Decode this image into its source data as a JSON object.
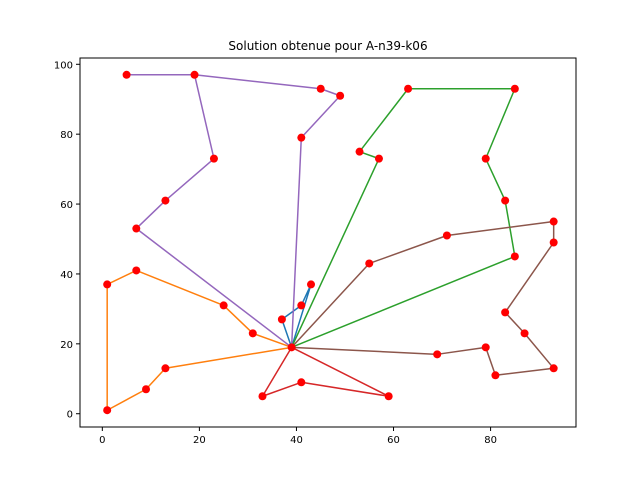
{
  "chart_data": {
    "type": "line",
    "title": "Solution obtenue pour A-n39-k06",
    "xlabel": "",
    "ylabel": "",
    "xlim": [
      -4.6,
      97.6
    ],
    "ylim": [
      -3.8,
      101.8
    ],
    "xticks": [
      0,
      20,
      40,
      60,
      80
    ],
    "yticks": [
      0,
      20,
      40,
      60,
      80,
      100
    ],
    "grid": false,
    "marker_color": "#ff0000",
    "depot": [
      39,
      19
    ],
    "routes": [
      {
        "color": "#1f77b4",
        "points": [
          [
            39,
            19
          ],
          [
            37,
            27
          ],
          [
            41,
            31
          ],
          [
            43,
            37
          ],
          [
            39,
            19
          ]
        ]
      },
      {
        "color": "#ff7f0e",
        "points": [
          [
            39,
            19
          ],
          [
            31,
            23
          ],
          [
            25,
            31
          ],
          [
            7,
            41
          ],
          [
            1,
            37
          ],
          [
            1,
            1
          ],
          [
            9,
            7
          ],
          [
            13,
            13
          ],
          [
            39,
            19
          ]
        ]
      },
      {
        "color": "#2ca02c",
        "points": [
          [
            39,
            19
          ],
          [
            57,
            73
          ],
          [
            53,
            75
          ],
          [
            63,
            93
          ],
          [
            85,
            93
          ],
          [
            79,
            73
          ],
          [
            83,
            61
          ],
          [
            85,
            45
          ],
          [
            39,
            19
          ]
        ]
      },
      {
        "color": "#d62728",
        "points": [
          [
            39,
            19
          ],
          [
            33,
            5
          ],
          [
            41,
            9
          ],
          [
            59,
            5
          ],
          [
            39,
            19
          ]
        ]
      },
      {
        "color": "#9467bd",
        "points": [
          [
            39,
            19
          ],
          [
            7,
            53
          ],
          [
            13,
            61
          ],
          [
            23,
            73
          ],
          [
            19,
            97
          ],
          [
            5,
            97
          ],
          [
            19,
            97
          ],
          [
            45,
            93
          ],
          [
            49,
            91
          ],
          [
            41,
            79
          ],
          [
            39,
            19
          ]
        ]
      },
      {
        "color": "#8c564b",
        "points": [
          [
            39,
            19
          ],
          [
            55,
            43
          ],
          [
            71,
            51
          ],
          [
            93,
            55
          ],
          [
            93,
            49
          ],
          [
            83,
            29
          ],
          [
            87,
            23
          ],
          [
            93,
            13
          ],
          [
            81,
            11
          ],
          [
            79,
            19
          ],
          [
            69,
            17
          ],
          [
            39,
            19
          ]
        ]
      }
    ]
  }
}
